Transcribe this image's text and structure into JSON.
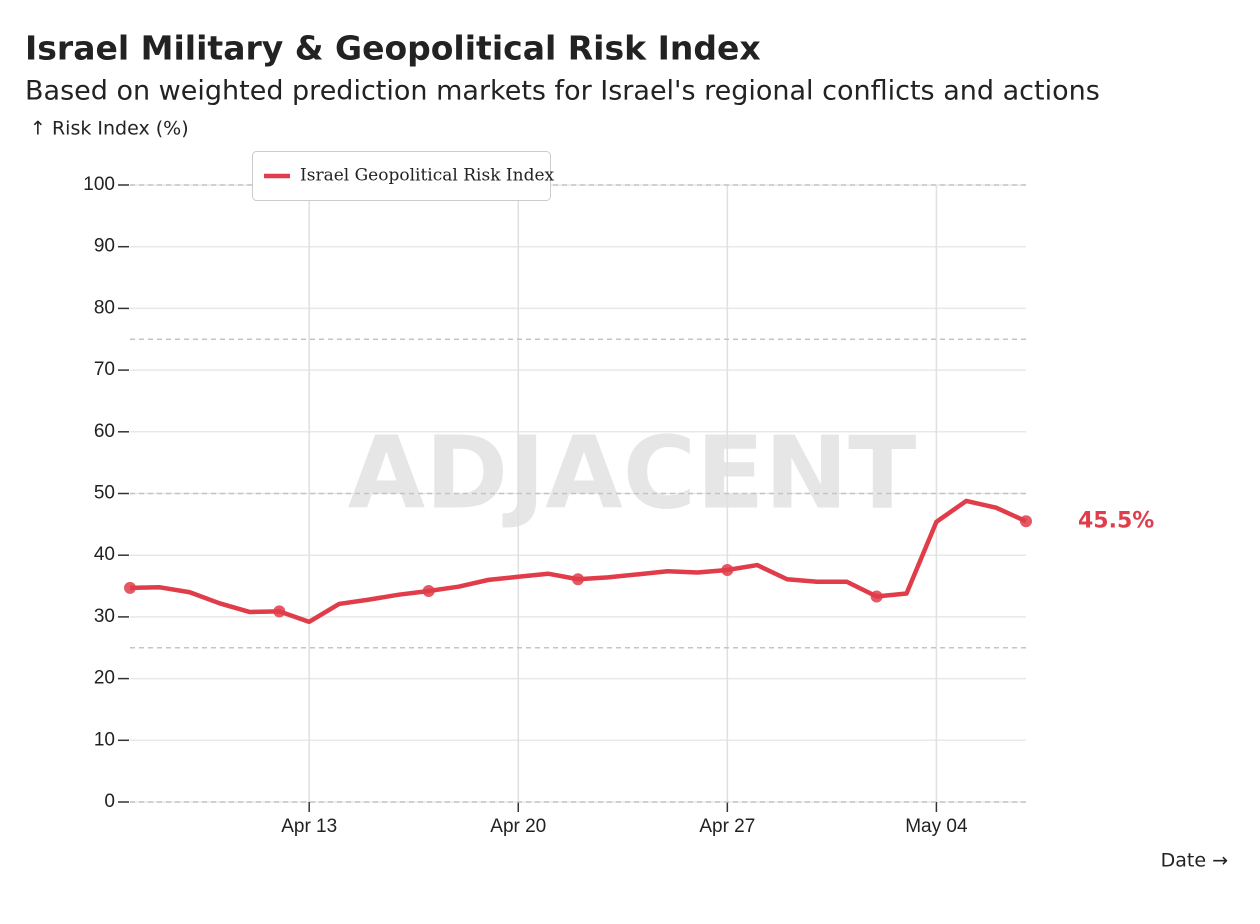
{
  "chart_data": {
    "type": "line",
    "title": "Israel Military & Geopolitical Risk Index",
    "subtitle": "Based on weighted prediction markets for Israel's regional conflicts and actions",
    "y_axis_label": "↑ Risk Index (%)",
    "x_axis_label": "Date →",
    "watermark": "ADJACENT",
    "x": [
      "Apr 07",
      "Apr 08",
      "Apr 09",
      "Apr 10",
      "Apr 11",
      "Apr 12",
      "Apr 13",
      "Apr 14",
      "Apr 15",
      "Apr 16",
      "Apr 17",
      "Apr 18",
      "Apr 19",
      "Apr 20",
      "Apr 21",
      "Apr 22",
      "Apr 23",
      "Apr 24",
      "Apr 25",
      "Apr 26",
      "Apr 27",
      "Apr 28",
      "Apr 29",
      "Apr 30",
      "May 01",
      "May 02",
      "May 03",
      "May 04",
      "May 05",
      "May 06",
      "May 07"
    ],
    "series": [
      {
        "name": "Israel Geopolitical Risk Index",
        "color": "#e03c4a",
        "values": [
          34.7,
          34.8,
          34.0,
          32.2,
          30.8,
          30.9,
          29.2,
          32.1,
          32.8,
          33.6,
          34.2,
          34.9,
          36.0,
          36.5,
          37.0,
          36.1,
          36.4,
          36.9,
          37.4,
          37.2,
          37.6,
          38.4,
          36.1,
          35.7,
          35.7,
          33.3,
          33.8,
          45.4,
          48.8,
          47.7,
          45.5
        ]
      }
    ],
    "end_label": "45.5%",
    "marker_every": 5,
    "ylim": [
      0,
      100
    ],
    "yticks": [
      0,
      10,
      20,
      30,
      40,
      50,
      60,
      70,
      80,
      90,
      100
    ],
    "xticks": [
      "Apr 13",
      "Apr 20",
      "Apr 27",
      "May 04"
    ],
    "dashed_lines": [
      0,
      25,
      50,
      75,
      100
    ],
    "grid": true,
    "legend": "top-left"
  }
}
